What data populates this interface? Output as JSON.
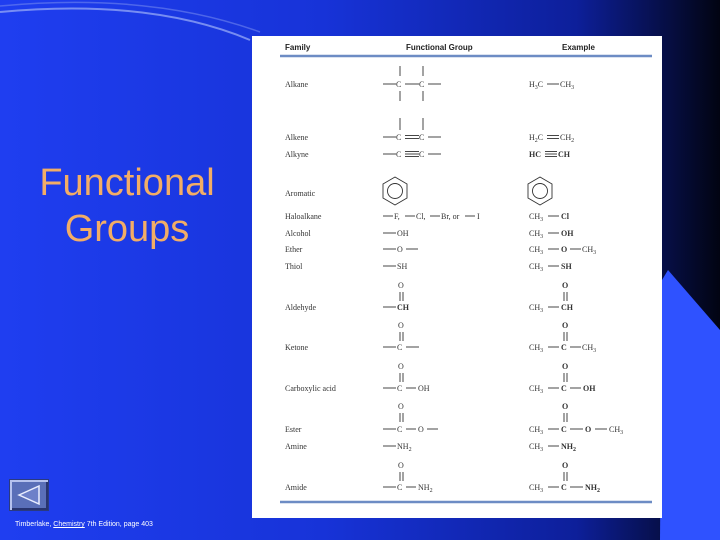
{
  "slide": {
    "title_line1": "Functional",
    "title_line2": "Groups",
    "citation_before": "Timberlake, ",
    "citation_link": "Chemistry",
    "citation_after": " 7th Edition, page 403",
    "nav_icon": "back-triangle-icon",
    "colors": {
      "title": "#f2ad66",
      "background": "#1f3ef0",
      "panel": "#ffffff"
    }
  },
  "table": {
    "headers": {
      "family": "Family",
      "group": "Functional Group",
      "example": "Example"
    },
    "rows": [
      {
        "family": "Alkane",
        "group": "—C—C—",
        "example": "H3C—CH3"
      },
      {
        "family": "Alkene",
        "group": "—C=C—",
        "example": "H2C=CH2"
      },
      {
        "family": "Alkyne",
        "group": "—C≡C—",
        "example": "HC≡CH"
      },
      {
        "family": "Aromatic",
        "group": "benzene-ring-icon",
        "example": "benzene-ring-icon"
      },
      {
        "family": "Haloalkane",
        "group": "—F, —Cl, —Br, or —I",
        "example": "CH3—Cl"
      },
      {
        "family": "Alcohol",
        "group": "—OH",
        "example": "CH3—OH"
      },
      {
        "family": "Ether",
        "group": "—O—",
        "example": "CH3—O—CH3"
      },
      {
        "family": "Thiol",
        "group": "—SH",
        "example": "CH3—SH"
      },
      {
        "family": "Aldehyde",
        "group": "—CH (C=O)",
        "example": "CH3—CH (C=O)"
      },
      {
        "family": "Ketone",
        "group": "—C— (C=O)",
        "example": "CH3—C—CH3 (C=O)"
      },
      {
        "family": "Carboxylic acid",
        "group": "—C—OH (C=O)",
        "example": "CH3—C—OH (C=O)"
      },
      {
        "family": "Ester",
        "group": "—C—O— (C=O)",
        "example": "CH3—C—O—CH3 (C=O)"
      },
      {
        "family": "Amine",
        "group": "—NH2",
        "example": "CH3—NH2"
      },
      {
        "family": "Amide",
        "group": "—C—NH2 (C=O)",
        "example": "CH3—C—NH2 (C=O)"
      }
    ]
  }
}
